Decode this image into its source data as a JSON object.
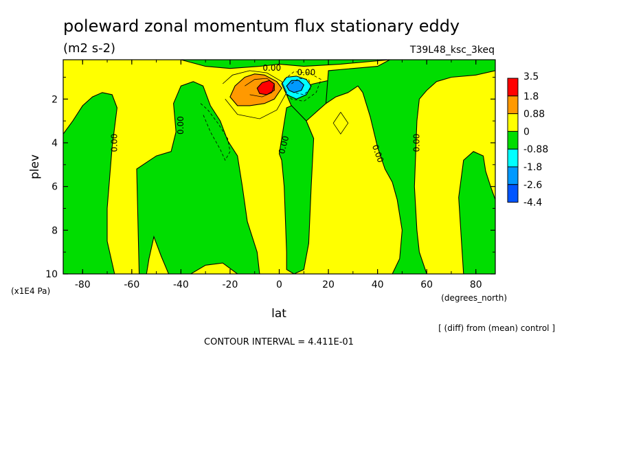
{
  "chart_data": {
    "type": "heatmap",
    "title": "poleward zonal momentum flux stationary eddy",
    "units": "(m2 s-2)",
    "experiment": "T39L48_ksc_3keq",
    "xlabel": "lat",
    "xunits": "(degrees_north)",
    "ylabel": "plev",
    "yunits": "(x1E4 Pa)",
    "diff_note": "[ (diff) from (mean) control ]",
    "contour_interval": "CONTOUR INTERVAL = 4.411E-01",
    "xlim": [
      -87.9,
      87.9
    ],
    "ylim": [
      10,
      0.2
    ],
    "x_ticks": [
      -80,
      -60,
      -40,
      -20,
      0,
      20,
      40,
      60,
      80
    ],
    "x_tick_labels": [
      "-80",
      "-60",
      "-40",
      "-20",
      "0",
      "20",
      "40",
      "60",
      "80"
    ],
    "y_ticks": [
      2,
      4,
      6,
      8,
      10
    ],
    "y_tick_labels": [
      "2",
      "4",
      "6",
      "8",
      "10"
    ],
    "legend": {
      "levels": [
        "3.5",
        "1.8",
        "0.88",
        "0",
        "-0.88",
        "-1.8",
        "-2.6",
        "-4.4"
      ],
      "colors": [
        "#ff0000",
        "#ff9900",
        "#ffff00",
        "#00dd00",
        "#00ffff",
        "#0099ff",
        "#0055ff"
      ]
    },
    "contour_labels": [
      {
        "text": "0.00",
        "lat": -3,
        "plev": 0.6,
        "rotate": 0
      },
      {
        "text": "0.00",
        "lat": 11,
        "plev": 0.8,
        "rotate": 0
      },
      {
        "text": "0.00",
        "lat": -67,
        "plev": 4.0,
        "rotate": -90
      },
      {
        "text": "0.00",
        "lat": -40,
        "plev": 3.2,
        "rotate": -90
      },
      {
        "text": "0.00",
        "lat": 2,
        "plev": 4.1,
        "rotate": -75
      },
      {
        "text": "0.00",
        "lat": 40,
        "plev": 4.5,
        "rotate": 70
      },
      {
        "text": "0.00",
        "lat": 56,
        "plev": 4.0,
        "rotate": -90
      }
    ],
    "regions": [
      {
        "fill": "#00dd00",
        "points": [
          [
            -87.9,
            3.6
          ],
          [
            -84,
            3.0
          ],
          [
            -80,
            2.3
          ],
          [
            -76,
            1.9
          ],
          [
            -72,
            1.7
          ],
          [
            -68,
            1.8
          ],
          [
            -66,
            2.4
          ],
          [
            -68,
            4.2
          ],
          [
            -70,
            7.0
          ],
          [
            -70,
            8.5
          ],
          [
            -67,
            10
          ],
          [
            -87.9,
            10
          ]
        ]
      },
      {
        "fill": "#00dd00",
        "points": [
          [
            -57,
            10
          ],
          [
            -58,
            5.2
          ],
          [
            -54,
            4.9
          ],
          [
            -50,
            4.6
          ],
          [
            -44,
            4.4
          ],
          [
            -42,
            3.5
          ],
          [
            -43,
            2.2
          ],
          [
            -40,
            1.4
          ],
          [
            -35,
            1.2
          ],
          [
            -31,
            1.4
          ],
          [
            -28,
            2.3
          ],
          [
            -24,
            3.0
          ],
          [
            -21,
            3.9
          ],
          [
            -17,
            4.6
          ],
          [
            -15,
            6.0
          ],
          [
            -13,
            7.6
          ],
          [
            -9,
            9.0
          ],
          [
            -8,
            10
          ],
          [
            -17,
            10
          ],
          [
            -23,
            9.5
          ],
          [
            -30,
            9.6
          ],
          [
            -36,
            10
          ],
          [
            -45,
            10
          ],
          [
            -48,
            9.2
          ],
          [
            -51,
            8.3
          ],
          [
            -53,
            9.3
          ],
          [
            -54,
            10
          ]
        ]
      },
      {
        "fill": "#00dd00",
        "points": [
          [
            3,
            1.8
          ],
          [
            6,
            2.6
          ],
          [
            9,
            3.2
          ],
          [
            12,
            2.9
          ],
          [
            16,
            2.5
          ],
          [
            19,
            2.2
          ],
          [
            23,
            1.9
          ],
          [
            28,
            1.7
          ],
          [
            32,
            1.3
          ],
          [
            30,
            1.2
          ],
          [
            22,
            1.1
          ],
          [
            14,
            1.3
          ],
          [
            8,
            1.5
          ]
        ]
      },
      {
        "fill": "#00dd00",
        "points": [
          [
            19,
            2.2
          ],
          [
            23,
            1.9
          ],
          [
            28,
            1.7
          ],
          [
            32,
            1.4
          ],
          [
            34,
            1.7
          ],
          [
            37,
            2.8
          ],
          [
            40,
            4.2
          ],
          [
            43,
            5.2
          ],
          [
            46,
            5.8
          ],
          [
            48,
            6.6
          ],
          [
            50,
            8.0
          ],
          [
            49,
            9.3
          ],
          [
            46,
            10
          ],
          [
            60,
            10
          ],
          [
            57,
            9.0
          ],
          [
            56,
            8.0
          ],
          [
            55,
            6.0
          ],
          [
            56,
            3.0
          ],
          [
            57,
            2.0
          ],
          [
            60,
            1.6
          ],
          [
            64,
            1.2
          ],
          [
            70,
            1.0
          ],
          [
            80,
            0.9
          ],
          [
            87.9,
            0.7
          ],
          [
            87.9,
            0.2
          ],
          [
            45,
            0.2
          ],
          [
            40,
            0.5
          ],
          [
            30,
            0.6
          ],
          [
            20,
            0.7
          ]
        ]
      },
      {
        "fill": "#00dd00",
        "points": [
          [
            0,
            4.5
          ],
          [
            3,
            2.4
          ],
          [
            5,
            2.3
          ],
          [
            11,
            3.0
          ],
          [
            14,
            3.8
          ],
          [
            13,
            6.0
          ],
          [
            12,
            8.6
          ],
          [
            10,
            9.8
          ],
          [
            6,
            10
          ],
          [
            3,
            9.8
          ],
          [
            3,
            9.0
          ],
          [
            2,
            6.0
          ],
          [
            1,
            4.8
          ]
        ]
      },
      {
        "fill": "#00dd00",
        "points": [
          [
            75,
            10
          ],
          [
            73,
            6.5
          ],
          [
            75,
            4.8
          ],
          [
            79,
            4.4
          ],
          [
            83,
            4.6
          ],
          [
            84,
            5.3
          ],
          [
            86,
            6.0
          ],
          [
            87.9,
            6.6
          ],
          [
            87.9,
            10
          ]
        ]
      },
      {
        "fill": "#00dd00",
        "points": [
          [
            -87.9,
            0.2
          ],
          [
            -40,
            0.2
          ],
          [
            -30,
            0.5
          ],
          [
            -20,
            0.6
          ],
          [
            -8,
            0.5
          ],
          [
            0,
            0.4
          ],
          [
            10,
            0.5
          ],
          [
            25,
            0.4
          ],
          [
            45,
            0.2
          ]
        ]
      },
      {
        "fill": "#ff9900",
        "points": [
          [
            -20,
            1.9
          ],
          [
            -18,
            1.4
          ],
          [
            -14,
            1.0
          ],
          [
            -10,
            0.85
          ],
          [
            -6,
            0.9
          ],
          [
            -1,
            1.2
          ],
          [
            1,
            1.5
          ],
          [
            -2,
            2.0
          ],
          [
            -6,
            2.2
          ],
          [
            -12,
            2.3
          ],
          [
            -17,
            2.3
          ]
        ]
      },
      {
        "fill": "#ff0000",
        "points": [
          [
            -9,
            1.5
          ],
          [
            -7,
            1.25
          ],
          [
            -4,
            1.15
          ],
          [
            -2,
            1.3
          ],
          [
            -2,
            1.6
          ],
          [
            -5,
            1.8
          ],
          [
            -8,
            1.75
          ]
        ]
      },
      {
        "fill": "#00ffff",
        "points": [
          [
            1,
            1.3
          ],
          [
            3,
            1.0
          ],
          [
            7,
            0.95
          ],
          [
            11,
            1.1
          ],
          [
            13,
            1.4
          ],
          [
            11,
            1.8
          ],
          [
            7,
            2.0
          ],
          [
            3,
            1.8
          ]
        ]
      },
      {
        "fill": "#0099ff",
        "points": [
          [
            3,
            1.4
          ],
          [
            5,
            1.15
          ],
          [
            8,
            1.15
          ],
          [
            10,
            1.35
          ],
          [
            9,
            1.6
          ],
          [
            6,
            1.7
          ],
          [
            4,
            1.6
          ]
        ]
      }
    ],
    "contour_lines": [
      {
        "dashed": false,
        "points": [
          [
            -23,
            1.3
          ],
          [
            -19,
            0.9
          ],
          [
            -12,
            0.7
          ],
          [
            -5,
            0.8
          ],
          [
            1,
            1.2
          ],
          [
            3,
            1.7
          ],
          [
            -1,
            2.5
          ],
          [
            -8,
            2.9
          ],
          [
            -17,
            2.7
          ],
          [
            -22,
            2.0
          ]
        ]
      },
      {
        "dashed": false,
        "points": [
          [
            -14,
            1.4
          ],
          [
            -10,
            1.1
          ],
          [
            -5,
            1.05
          ],
          [
            -2,
            1.3
          ],
          [
            -3,
            1.7
          ],
          [
            -7,
            1.9
          ],
          [
            -12,
            1.8
          ]
        ]
      },
      {
        "dashed": true,
        "points": [
          [
            -32,
            2.2
          ],
          [
            -29,
            2.5
          ],
          [
            -25,
            3.1
          ],
          [
            -21,
            3.8
          ],
          [
            -20,
            4.4
          ],
          [
            -22,
            4.8
          ],
          [
            -24,
            4.3
          ],
          [
            -28,
            3.5
          ],
          [
            -31,
            2.7
          ]
        ]
      },
      {
        "dashed": true,
        "points": [
          [
            2,
            1.1
          ],
          [
            6,
            0.75
          ],
          [
            12,
            0.8
          ],
          [
            17,
            1.1
          ],
          [
            15,
            1.7
          ],
          [
            10,
            2.1
          ],
          [
            5,
            2.0
          ],
          [
            2,
            1.6
          ]
        ]
      },
      {
        "dashed": true,
        "points": [
          [
            5,
            1.3
          ],
          [
            8,
            1.05
          ],
          [
            12,
            1.1
          ],
          [
            13,
            1.5
          ],
          [
            10,
            1.8
          ],
          [
            6,
            1.7
          ]
        ]
      },
      {
        "dashed": false,
        "points": [
          [
            25,
            2.6
          ],
          [
            28,
            3.1
          ],
          [
            25,
            3.6
          ],
          [
            22,
            3.1
          ],
          [
            25,
            2.6
          ]
        ]
      }
    ]
  }
}
